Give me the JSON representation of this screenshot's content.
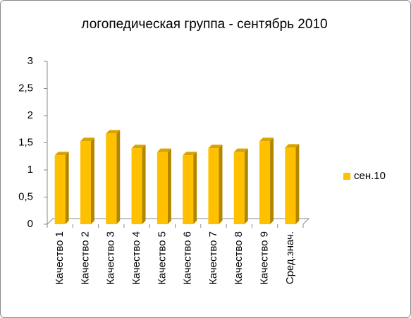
{
  "chart_data": {
    "type": "bar",
    "title": "логопедическая группа - сентябрь 2010",
    "categories": [
      "Качество 1",
      "Качество 2",
      "Качество 3",
      "Качество 4",
      "Качество 5",
      "Качество 6",
      "Качество 7",
      "Качество 8",
      "Качество 9",
      "Сред.знач."
    ],
    "series": [
      {
        "name": "сен.10",
        "color": "#ffc000",
        "values": [
          1.27,
          1.53,
          1.67,
          1.4,
          1.33,
          1.27,
          1.4,
          1.33,
          1.53,
          1.41
        ]
      }
    ],
    "ylim": [
      0,
      3
    ],
    "yticks": [
      0,
      {
        "value": 0.5,
        "label": "0,5"
      },
      1,
      {
        "value": 1.5,
        "label": "1,5"
      },
      2,
      {
        "value": 2.5,
        "label": "2,5"
      },
      3
    ],
    "legend": "right"
  }
}
